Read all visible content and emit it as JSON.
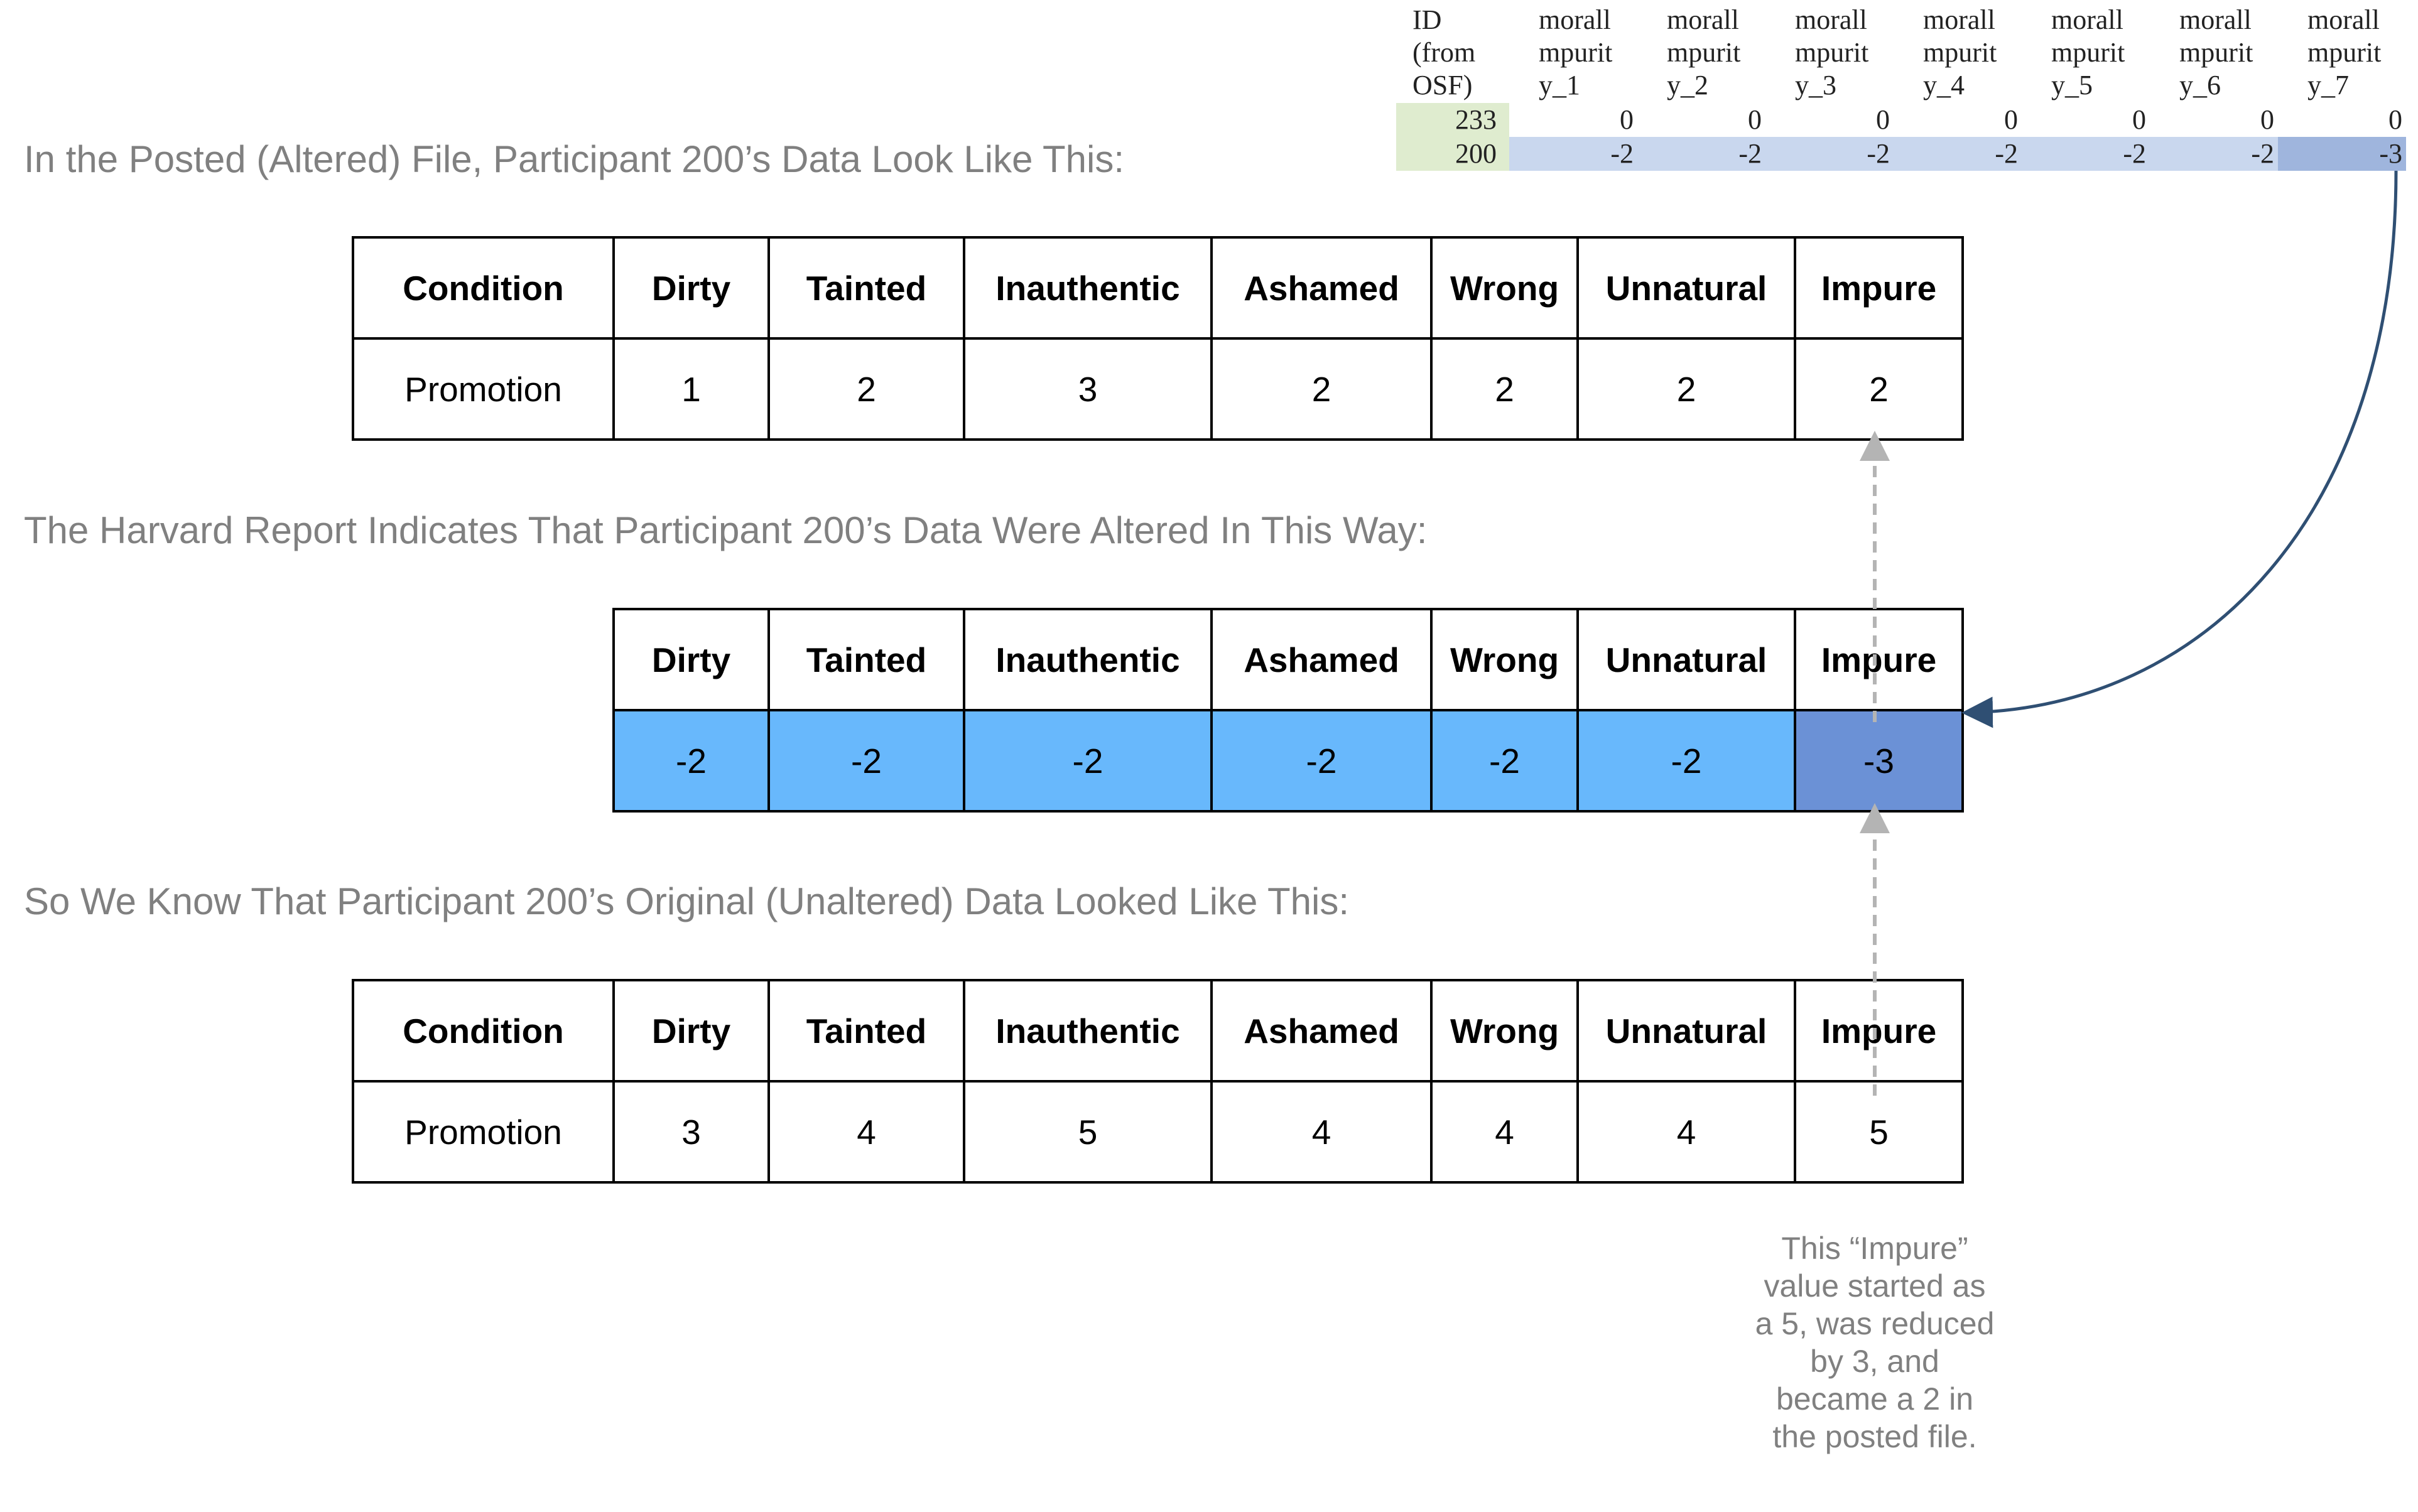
{
  "spreadsheet": {
    "headers": [
      "ID\n(from\nOSF)",
      "morall\nmpurit\ny_1",
      "morall\nmpurit\ny_2",
      "morall\nmpurit\ny_3",
      "morall\nmpurit\ny_4",
      "morall\nmpurit\ny_5",
      "morall\nmpurit\ny_6",
      "morall\nmpurit\ny_7"
    ],
    "rows": [
      {
        "id": "233",
        "values": [
          "0",
          "0",
          "0",
          "0",
          "0",
          "0",
          "0"
        ]
      },
      {
        "id": "200",
        "values": [
          "-2",
          "-2",
          "-2",
          "-2",
          "-2",
          "-2",
          "-3"
        ]
      }
    ]
  },
  "section1": {
    "heading": "In the Posted (Altered) File, Participant 200’s Data Look Like This:",
    "headers": [
      "Condition",
      "Dirty",
      "Tainted",
      "Inauthentic",
      "Ashamed",
      "Wrong",
      "Unnatural",
      "Impure"
    ],
    "values": [
      "Promotion",
      "1",
      "2",
      "3",
      "2",
      "2",
      "2",
      "2"
    ]
  },
  "section2": {
    "heading": "The Harvard Report Indicates That Participant 200’s Data Were Altered In This Way:",
    "headers": [
      "Dirty",
      "Tainted",
      "Inauthentic",
      "Ashamed",
      "Wrong",
      "Unnatural",
      "Impure"
    ],
    "values": [
      "-2",
      "-2",
      "-2",
      "-2",
      "-2",
      "-2",
      "-3"
    ]
  },
  "section3": {
    "heading": "So We Know That Participant 200’s Original (Unaltered) Data Looked Like This:",
    "headers": [
      "Condition",
      "Dirty",
      "Tainted",
      "Inauthentic",
      "Ashamed",
      "Wrong",
      "Unnatural",
      "Impure"
    ],
    "values": [
      "Promotion",
      "3",
      "4",
      "5",
      "4",
      "4",
      "4",
      "5"
    ]
  },
  "note": "This “Impure” value started as a 5, was reduced by 3, and became a 2 in the posted file.",
  "colors": {
    "change_cell": "#68b8fc",
    "impure_change_cell": "#6b91d6",
    "arrow": "#2f4f73",
    "heading_text": "#808080"
  }
}
